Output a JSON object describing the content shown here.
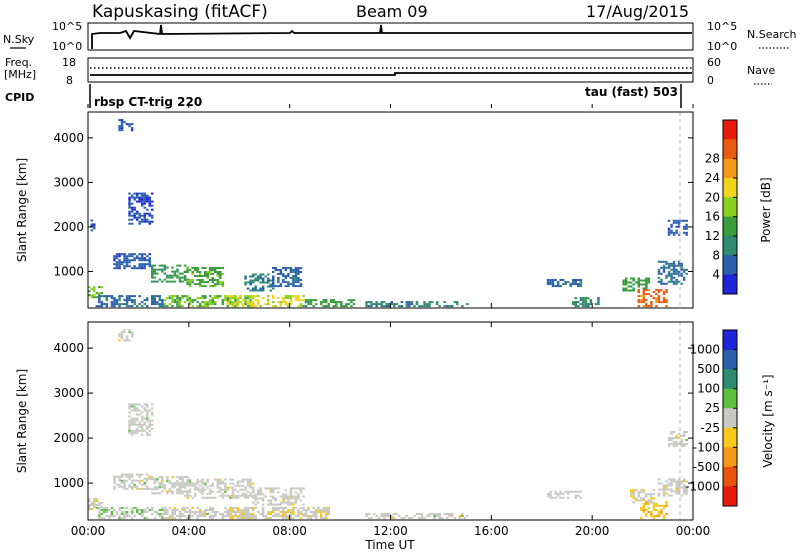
{
  "header": {
    "station": "Kapuskasing (fitACF)",
    "beam": "Beam 09",
    "date": "17/Aug/2015"
  },
  "summary": {
    "nsky_label": "N.Sky",
    "nsky_ticks": [
      "10^5",
      "10^0"
    ],
    "nsearch_ticks": [
      "10^5",
      "10^0"
    ],
    "nsearch_label": "N.Search",
    "freq_label": "Freq.",
    "freq_unit": "[MHz]",
    "freq_ticks": [
      "18",
      "8"
    ],
    "nave_ticks": [
      "60",
      "0"
    ],
    "nave_label": "Nave",
    "cpid_label": "CPID",
    "cpid_left": "rbsp CT-trig 220",
    "cpid_right": "tau (fast) 503"
  },
  "colors": {
    "power": [
      "#1e24d8",
      "#2a5fae",
      "#2f8a6f",
      "#3a9c3c",
      "#8ad021",
      "#f2d41a",
      "#f59a16",
      "#ea5a10",
      "#e81a0e"
    ],
    "velocity": [
      "#1e24d8",
      "#2a5fae",
      "#2f8a6f",
      "#5cbf3e",
      "#c8c8c4",
      "#f8c81a",
      "#f59a16",
      "#e8540e",
      "#e81a0e"
    ]
  },
  "chart_data": [
    {
      "type": "heatmap",
      "name": "power",
      "xlabel": "",
      "ylabel": "Slant Range [km]",
      "x_ticks": [
        "00:00",
        "04:00",
        "08:00",
        "12:00",
        "16:00",
        "20:00",
        "00:00"
      ],
      "x_range_hours": [
        0,
        24
      ],
      "y_ticks": [
        1000,
        2000,
        3000,
        4000
      ],
      "ylim": [
        180,
        4580
      ],
      "colorbar": {
        "label": "Power [dB]",
        "ticks": [
          "4",
          "8",
          "12",
          "16",
          "20",
          "24",
          "28"
        ],
        "range": [
          0,
          32
        ]
      },
      "patches": [
        {
          "t": [
            0.0,
            0.6
          ],
          "r": [
            400,
            650
          ],
          "v": 14
        },
        {
          "t": [
            0.3,
            3.0
          ],
          "r": [
            200,
            450
          ],
          "v": 6
        },
        {
          "t": [
            3.0,
            6.5
          ],
          "r": [
            200,
            450
          ],
          "v": 14
        },
        {
          "t": [
            5.5,
            8.5
          ],
          "r": [
            200,
            450
          ],
          "v": 18
        },
        {
          "t": [
            8.5,
            10.5
          ],
          "r": [
            200,
            380
          ],
          "v": 12
        },
        {
          "t": [
            1.0,
            2.5
          ],
          "r": [
            1050,
            1400
          ],
          "v": 5
        },
        {
          "t": [
            2.5,
            4.0
          ],
          "r": [
            750,
            1150
          ],
          "v": 11
        },
        {
          "t": [
            3.8,
            5.3
          ],
          "r": [
            650,
            1100
          ],
          "v": 13
        },
        {
          "t": [
            1.6,
            2.6
          ],
          "r": [
            2050,
            2750
          ],
          "v": 4
        },
        {
          "t": [
            1.2,
            1.8
          ],
          "r": [
            4150,
            4400
          ],
          "v": 5
        },
        {
          "t": [
            0.1,
            0.3
          ],
          "r": [
            1900,
            2150
          ],
          "v": 4
        },
        {
          "t": [
            6.2,
            7.3
          ],
          "r": [
            550,
            950
          ],
          "v": 8
        },
        {
          "t": [
            7.3,
            8.4
          ],
          "r": [
            650,
            1100
          ],
          "v": 6
        },
        {
          "t": [
            11.0,
            15.0
          ],
          "r": [
            200,
            300
          ],
          "v": 8
        },
        {
          "t": [
            18.2,
            19.6
          ],
          "r": [
            650,
            800
          ],
          "v": 6
        },
        {
          "t": [
            19.2,
            20.3
          ],
          "r": [
            200,
            400
          ],
          "v": 9
        },
        {
          "t": [
            21.2,
            22.3
          ],
          "r": [
            550,
            850
          ],
          "v": 12
        },
        {
          "t": [
            21.8,
            23.0
          ],
          "r": [
            200,
            600
          ],
          "v": 26
        },
        {
          "t": [
            22.6,
            23.8
          ],
          "r": [
            700,
            1200
          ],
          "v": 7
        },
        {
          "t": [
            23.0,
            23.8
          ],
          "r": [
            1800,
            2150
          ],
          "v": 5
        }
      ]
    },
    {
      "type": "heatmap",
      "name": "velocity",
      "xlabel": "Time UT",
      "ylabel": "Slant Range [km]",
      "x_ticks": [
        "00:00",
        "04:00",
        "08:00",
        "12:00",
        "16:00",
        "20:00",
        "00:00"
      ],
      "x_range_hours": [
        0,
        24
      ],
      "y_ticks": [
        1000,
        2000,
        3000,
        4000
      ],
      "ylim": [
        180,
        4580
      ],
      "colorbar": {
        "label": "Velocity [m s⁻¹]",
        "ticks": [
          "1000",
          "500",
          "100",
          "25",
          "-25",
          "-100",
          "-500",
          "-1000"
        ],
        "range": [
          -1200,
          1200
        ]
      },
      "patches": [
        {
          "t": [
            0.0,
            0.6
          ],
          "r": [
            400,
            650
          ],
          "v": -60
        },
        {
          "t": [
            0.3,
            3.0
          ],
          "r": [
            200,
            450
          ],
          "v": 60
        },
        {
          "t": [
            3.0,
            6.5
          ],
          "r": [
            200,
            450
          ],
          "v": 0
        },
        {
          "t": [
            5.5,
            9.5
          ],
          "r": [
            200,
            450
          ],
          "v": -60
        },
        {
          "t": [
            1.0,
            2.5
          ],
          "r": [
            850,
            1200
          ],
          "v": 0
        },
        {
          "t": [
            2.5,
            4.0
          ],
          "r": [
            750,
            1150
          ],
          "v": 0
        },
        {
          "t": [
            3.8,
            6.5
          ],
          "r": [
            650,
            1100
          ],
          "v": 0
        },
        {
          "t": [
            1.6,
            2.6
          ],
          "r": [
            2050,
            2750
          ],
          "v": 0
        },
        {
          "t": [
            1.2,
            1.8
          ],
          "r": [
            4150,
            4400
          ],
          "v": 0
        },
        {
          "t": [
            6.5,
            8.5
          ],
          "r": [
            500,
            900
          ],
          "v": 0
        },
        {
          "t": [
            11.0,
            15.0
          ],
          "r": [
            200,
            300
          ],
          "v": 0
        },
        {
          "t": [
            18.2,
            19.6
          ],
          "r": [
            650,
            800
          ],
          "v": 0
        },
        {
          "t": [
            21.5,
            22.5
          ],
          "r": [
            550,
            850
          ],
          "v": -60
        },
        {
          "t": [
            21.9,
            23.0
          ],
          "r": [
            200,
            600
          ],
          "v": -320
        },
        {
          "t": [
            22.6,
            23.8
          ],
          "r": [
            700,
            1100
          ],
          "v": 0
        },
        {
          "t": [
            23.0,
            23.8
          ],
          "r": [
            1800,
            2150
          ],
          "v": 0
        }
      ]
    }
  ]
}
